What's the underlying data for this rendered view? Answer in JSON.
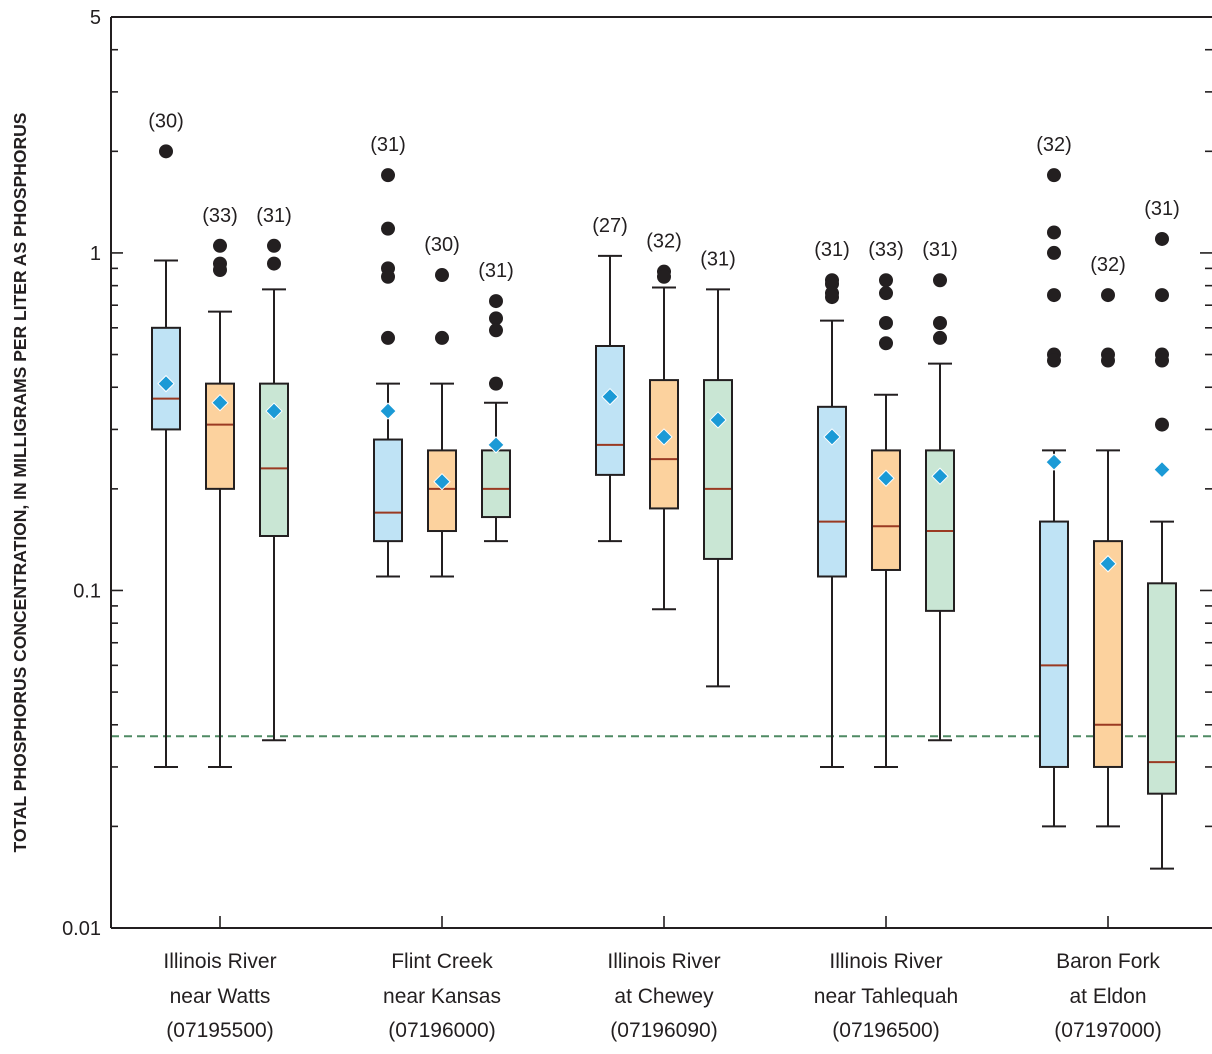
{
  "chart_data": {
    "type": "boxplot",
    "title": "",
    "ylabel": "TOTAL PHOSPHORUS CONCENTRATION, IN MILLIGRAMS PER LITER AS PHOSPHORUS",
    "xlabel": "",
    "yscale": "log",
    "ylim": [
      0.01,
      5
    ],
    "yticks": [
      {
        "value": 0.01,
        "label": "0.01"
      },
      {
        "value": 0.1,
        "label": "0.1"
      },
      {
        "value": 1,
        "label": "1"
      },
      {
        "value": 5,
        "label": "5"
      }
    ],
    "reference_line": {
      "value": 0.037,
      "color": "#4f8a63"
    },
    "series_colors": [
      "#bfe3f5",
      "#fcd29e",
      "#c9e6d4"
    ],
    "median_color": "#9a3a22",
    "mean_color": "#1b9ad6",
    "sites": [
      {
        "label_lines": [
          "Illinois River",
          "near Watts",
          "(07195500)"
        ],
        "boxes": [
          {
            "n": "(30)",
            "whisker_low": 0.03,
            "q1": 0.3,
            "median": 0.37,
            "q3": 0.6,
            "whisker_high": 0.95,
            "mean": 0.41,
            "outliers": [
              2.0
            ]
          },
          {
            "n": "(33)",
            "whisker_low": 0.03,
            "q1": 0.2,
            "median": 0.31,
            "q3": 0.41,
            "whisker_high": 0.67,
            "mean": 0.36,
            "outliers": [
              1.05,
              0.93,
              0.89
            ]
          },
          {
            "n": "(31)",
            "whisker_low": 0.036,
            "q1": 0.145,
            "median": 0.23,
            "q3": 0.41,
            "whisker_high": 0.78,
            "mean": 0.34,
            "outliers": [
              1.05,
              0.93
            ]
          }
        ]
      },
      {
        "label_lines": [
          "Flint Creek",
          "near Kansas",
          "(07196000)"
        ],
        "boxes": [
          {
            "n": "(31)",
            "whisker_low": 0.11,
            "q1": 0.14,
            "median": 0.17,
            "q3": 0.28,
            "whisker_high": 0.41,
            "mean": 0.34,
            "outliers": [
              1.7,
              1.18,
              0.9,
              0.85,
              0.56
            ]
          },
          {
            "n": "(30)",
            "whisker_low": 0.11,
            "q1": 0.15,
            "median": 0.2,
            "q3": 0.26,
            "whisker_high": 0.41,
            "mean": 0.21,
            "outliers": [
              0.86,
              0.56
            ]
          },
          {
            "n": "(31)",
            "whisker_low": 0.14,
            "q1": 0.165,
            "median": 0.2,
            "q3": 0.26,
            "whisker_high": 0.36,
            "mean": 0.27,
            "outliers": [
              0.72,
              0.64,
              0.59,
              0.41
            ]
          }
        ]
      },
      {
        "label_lines": [
          "Illinois River",
          "at Chewey",
          "(07196090)"
        ],
        "boxes": [
          {
            "n": "(27)",
            "whisker_low": 0.14,
            "q1": 0.22,
            "median": 0.27,
            "q3": 0.53,
            "whisker_high": 0.98,
            "mean": 0.375,
            "outliers": []
          },
          {
            "n": "(32)",
            "whisker_low": 0.088,
            "q1": 0.175,
            "median": 0.245,
            "q3": 0.42,
            "whisker_high": 0.79,
            "mean": 0.285,
            "outliers": [
              0.88,
              0.85
            ]
          },
          {
            "n": "(31)",
            "whisker_low": 0.052,
            "q1": 0.124,
            "median": 0.2,
            "q3": 0.42,
            "whisker_high": 0.78,
            "mean": 0.32,
            "outliers": []
          }
        ]
      },
      {
        "label_lines": [
          "Illinois River",
          "near Tahlequah",
          "(07196500)"
        ],
        "boxes": [
          {
            "n": "(31)",
            "whisker_low": 0.03,
            "q1": 0.11,
            "median": 0.16,
            "q3": 0.35,
            "whisker_high": 0.63,
            "mean": 0.285,
            "outliers": [
              0.83,
              0.81,
              0.76,
              0.74
            ]
          },
          {
            "n": "(33)",
            "whisker_low": 0.03,
            "q1": 0.115,
            "median": 0.155,
            "q3": 0.26,
            "whisker_high": 0.38,
            "mean": 0.215,
            "outliers": [
              0.83,
              0.76,
              0.62,
              0.54
            ]
          },
          {
            "n": "(31)",
            "whisker_low": 0.036,
            "q1": 0.087,
            "median": 0.15,
            "q3": 0.26,
            "whisker_high": 0.47,
            "mean": 0.218,
            "outliers": [
              0.83,
              0.62,
              0.56
            ]
          }
        ]
      },
      {
        "label_lines": [
          "Baron Fork",
          "at Eldon",
          "(07197000)"
        ],
        "boxes": [
          {
            "n": "(32)",
            "whisker_low": 0.02,
            "q1": 0.03,
            "median": 0.06,
            "q3": 0.16,
            "whisker_high": 0.26,
            "mean": 0.24,
            "outliers": [
              1.7,
              1.15,
              1.0,
              0.75,
              0.5,
              0.48
            ]
          },
          {
            "n": "(32)",
            "whisker_low": 0.02,
            "q1": 0.03,
            "median": 0.04,
            "q3": 0.14,
            "whisker_high": 0.26,
            "mean": 0.12,
            "outliers": [
              0.75,
              0.5,
              0.48
            ]
          },
          {
            "n": "(31)",
            "whisker_low": 0.015,
            "q1": 0.025,
            "median": 0.031,
            "q3": 0.105,
            "whisker_high": 0.16,
            "mean": 0.228,
            "outliers": [
              1.1,
              0.75,
              0.5,
              0.48,
              0.31
            ]
          }
        ]
      }
    ]
  }
}
